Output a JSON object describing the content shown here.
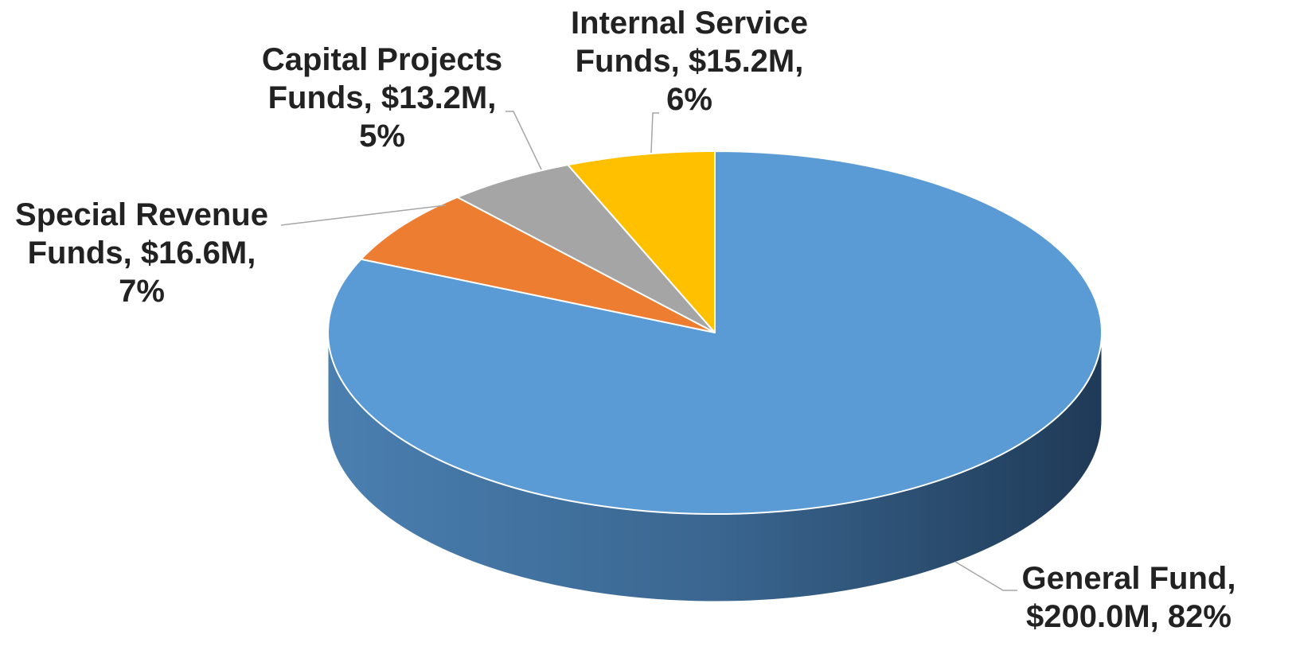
{
  "chart_data": {
    "type": "pie",
    "three_d": true,
    "title": "",
    "legend": "none",
    "unit": "$M",
    "slices": [
      {
        "name": "General Fund",
        "value": 200.0,
        "percent": 82,
        "color": "#5b9bd5",
        "side_color": "#3d6f9c",
        "label_lines": [
          "General Fund,",
          "$200.0M, 82%"
        ]
      },
      {
        "name": "Special Revenue Funds",
        "value": 16.6,
        "percent": 7,
        "color": "#ed7d31",
        "side_color": "#a85520",
        "label_lines": [
          "Special Revenue",
          "Funds, $16.6M,",
          "7%"
        ]
      },
      {
        "name": "Capital Projects Funds",
        "value": 13.2,
        "percent": 5,
        "color": "#a5a5a5",
        "side_color": "#757575",
        "label_lines": [
          "Capital Projects",
          "Funds, $13.2M,",
          "5%"
        ]
      },
      {
        "name": "Internal Service Funds",
        "value": 15.2,
        "percent": 6,
        "color": "#ffc000",
        "side_color": "#b38600",
        "label_lines": [
          "Internal Service",
          "Funds, $15.2M,",
          "6%"
        ]
      }
    ]
  }
}
